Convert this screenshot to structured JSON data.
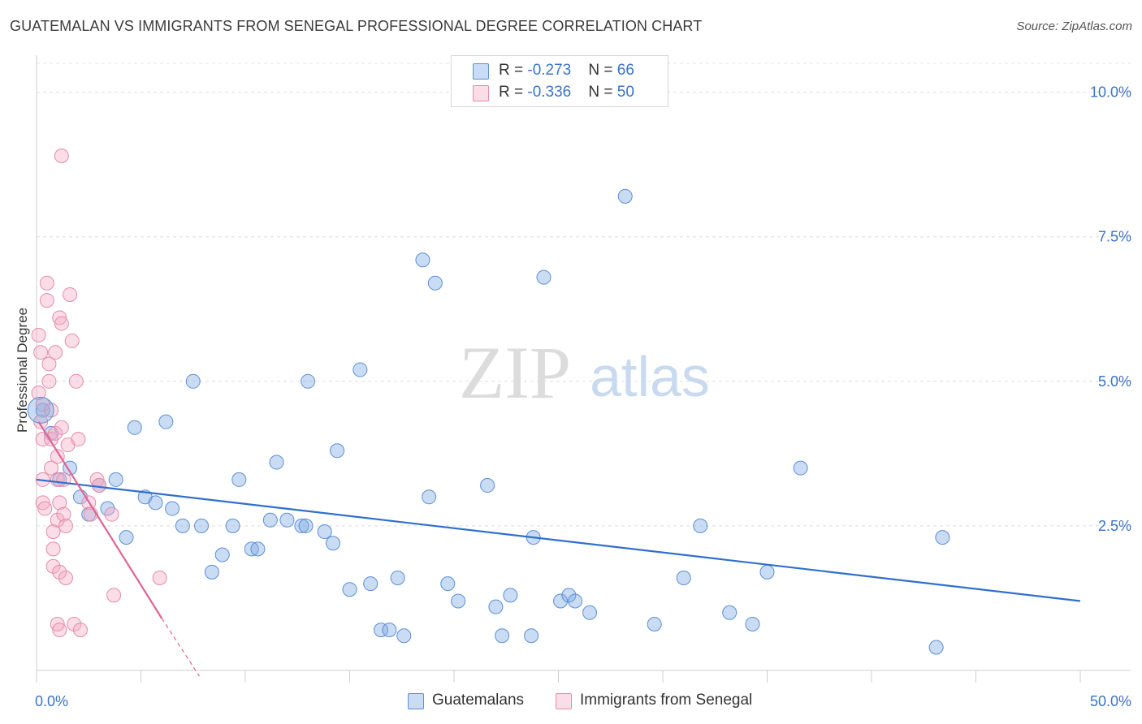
{
  "title": "GUATEMALAN VS IMMIGRANTS FROM SENEGAL PROFESSIONAL DEGREE CORRELATION CHART",
  "source": "Source: ZipAtlas.com",
  "watermark": {
    "zip": "ZIP",
    "atlas": "atlas"
  },
  "legend": {
    "rows": [
      {
        "r_label": "R = ",
        "r_value": "-0.273",
        "n_label": "N = ",
        "n_value": "66",
        "color": "#7aa7e0"
      },
      {
        "r_label": "R = ",
        "r_value": "-0.336",
        "n_label": "N = ",
        "n_value": "50",
        "color": "#f09ab8"
      }
    ]
  },
  "bottom_legend": [
    {
      "label": "Guatemalans",
      "color": "#7aa7e0"
    },
    {
      "label": "Immigrants from Senegal",
      "color": "#f09ab8"
    }
  ],
  "chart_data": {
    "type": "scatter",
    "xlabel": "",
    "ylabel": "Professional Degree",
    "xlim": [
      0,
      50
    ],
    "ylim": [
      0,
      10.5
    ],
    "x_tick_labels": [
      "0.0%",
      "50.0%"
    ],
    "y_ticks": [
      {
        "value": 2.5,
        "label": "2.5%"
      },
      {
        "value": 5.0,
        "label": "5.0%"
      },
      {
        "value": 7.5,
        "label": "7.5%"
      },
      {
        "value": 10.0,
        "label": "10.0%"
      }
    ],
    "grid": "horizontal dashed",
    "series": [
      {
        "name": "Guatemalans",
        "color": "#7aa7e0",
        "stroke": "#5b8fd6",
        "trend": {
          "x": [
            0,
            50
          ],
          "y": [
            3.3,
            1.2
          ],
          "color": "#2f6fcc"
        },
        "points": [
          [
            0.3,
            4.5
          ],
          [
            0.7,
            4.1
          ],
          [
            1.1,
            3.3
          ],
          [
            1.6,
            3.5
          ],
          [
            2.1,
            3.0
          ],
          [
            2.5,
            2.7
          ],
          [
            3.0,
            3.2
          ],
          [
            3.4,
            2.8
          ],
          [
            3.8,
            3.3
          ],
          [
            4.3,
            2.3
          ],
          [
            4.7,
            4.2
          ],
          [
            5.2,
            3.0
          ],
          [
            5.7,
            2.9
          ],
          [
            6.2,
            4.3
          ],
          [
            6.5,
            2.8
          ],
          [
            7.0,
            2.5
          ],
          [
            7.5,
            5.0
          ],
          [
            7.9,
            2.5
          ],
          [
            8.4,
            1.7
          ],
          [
            8.9,
            2.0
          ],
          [
            9.4,
            2.5
          ],
          [
            9.7,
            3.3
          ],
          [
            10.3,
            2.1
          ],
          [
            10.6,
            2.1
          ],
          [
            11.2,
            2.6
          ],
          [
            11.5,
            3.6
          ],
          [
            12.0,
            2.6
          ],
          [
            12.7,
            2.5
          ],
          [
            12.9,
            2.5
          ],
          [
            13.0,
            5.0
          ],
          [
            13.8,
            2.4
          ],
          [
            14.2,
            2.2
          ],
          [
            14.4,
            3.8
          ],
          [
            15.0,
            1.4
          ],
          [
            15.5,
            5.2
          ],
          [
            16.0,
            1.5
          ],
          [
            16.5,
            0.7
          ],
          [
            16.9,
            0.7
          ],
          [
            17.3,
            1.6
          ],
          [
            17.6,
            0.6
          ],
          [
            18.5,
            7.1
          ],
          [
            18.8,
            3.0
          ],
          [
            19.1,
            6.7
          ],
          [
            19.7,
            1.5
          ],
          [
            20.2,
            1.2
          ],
          [
            21.6,
            3.2
          ],
          [
            22.0,
            1.1
          ],
          [
            22.3,
            0.6
          ],
          [
            22.7,
            1.3
          ],
          [
            23.7,
            0.6
          ],
          [
            23.8,
            2.3
          ],
          [
            24.3,
            6.8
          ],
          [
            25.1,
            1.2
          ],
          [
            25.5,
            1.3
          ],
          [
            25.8,
            1.2
          ],
          [
            26.5,
            1.0
          ],
          [
            28.2,
            8.2
          ],
          [
            29.6,
            0.8
          ],
          [
            31.0,
            1.6
          ],
          [
            31.8,
            2.5
          ],
          [
            33.2,
            1.0
          ],
          [
            34.3,
            0.8
          ],
          [
            35.0,
            1.7
          ],
          [
            36.6,
            3.5
          ],
          [
            43.1,
            0.4
          ],
          [
            43.4,
            2.3
          ]
        ]
      },
      {
        "name": "Immigrants from Senegal",
        "color": "#f4a9c2",
        "stroke": "#e58aab",
        "trend": {
          "x": [
            0.1,
            6.0
          ],
          "y": [
            4.3,
            0.9
          ],
          "dash_to": {
            "x": 7.8,
            "y": -0.1
          },
          "color": "#e06394"
        },
        "points": [
          [
            0.1,
            5.8
          ],
          [
            0.1,
            4.8
          ],
          [
            0.2,
            5.5
          ],
          [
            0.2,
            4.3
          ],
          [
            0.3,
            4.6
          ],
          [
            0.3,
            4.0
          ],
          [
            0.3,
            3.3
          ],
          [
            0.3,
            2.9
          ],
          [
            0.4,
            2.8
          ],
          [
            0.5,
            6.7
          ],
          [
            0.5,
            6.4
          ],
          [
            0.6,
            5.3
          ],
          [
            0.6,
            5.0
          ],
          [
            0.7,
            4.5
          ],
          [
            0.7,
            4.0
          ],
          [
            0.7,
            3.5
          ],
          [
            0.8,
            2.4
          ],
          [
            0.8,
            2.1
          ],
          [
            0.8,
            1.8
          ],
          [
            0.9,
            5.5
          ],
          [
            0.9,
            4.1
          ],
          [
            1.0,
            3.7
          ],
          [
            1.0,
            3.3
          ],
          [
            1.0,
            2.6
          ],
          [
            1.0,
            0.8
          ],
          [
            1.1,
            2.9
          ],
          [
            1.1,
            6.1
          ],
          [
            1.1,
            1.7
          ],
          [
            1.1,
            0.7
          ],
          [
            1.2,
            8.9
          ],
          [
            1.2,
            6.0
          ],
          [
            1.2,
            4.2
          ],
          [
            1.3,
            3.3
          ],
          [
            1.3,
            2.7
          ],
          [
            1.4,
            2.5
          ],
          [
            1.4,
            1.6
          ],
          [
            1.5,
            3.9
          ],
          [
            1.6,
            6.5
          ],
          [
            1.7,
            5.7
          ],
          [
            1.8,
            0.8
          ],
          [
            1.9,
            5.0
          ],
          [
            2.0,
            4.0
          ],
          [
            2.1,
            0.7
          ],
          [
            2.5,
            2.9
          ],
          [
            2.6,
            2.7
          ],
          [
            2.9,
            3.3
          ],
          [
            3.0,
            3.2
          ],
          [
            3.6,
            2.7
          ],
          [
            3.7,
            1.3
          ],
          [
            5.9,
            1.6
          ]
        ]
      }
    ]
  }
}
